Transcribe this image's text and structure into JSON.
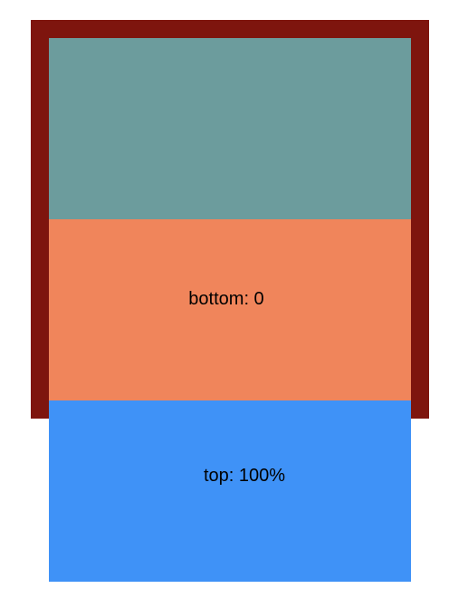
{
  "colors": {
    "frame": "#7e150e",
    "teal_box": "#6c9c9d",
    "orange_box": "#f0855b",
    "blue_box": "#3f92f7"
  },
  "boxes": {
    "bottom_label": "bottom: 0",
    "top_label": "top: 100%"
  }
}
